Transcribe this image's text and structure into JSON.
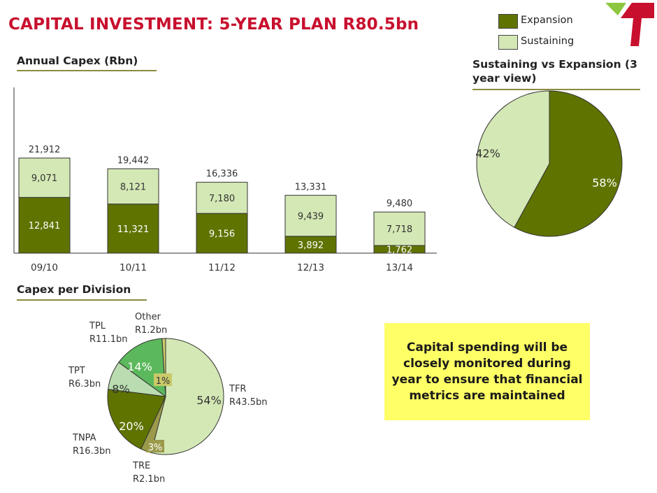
{
  "title": "CAPITAL INVESTMENT: 5-YEAR PLAN R80.5bn",
  "legend": {
    "items": [
      {
        "label": "Expansion",
        "color": "#5f7300"
      },
      {
        "label": "Sustaining",
        "color": "#d4e8b5"
      }
    ]
  },
  "logo": {
    "icon": "transnet-logo-icon",
    "colors": [
      "#c8102e",
      "#8dc63f"
    ]
  },
  "sections": {
    "annual_capex": "Annual Capex (Rbn)",
    "capex_per_division": "Capex per Division",
    "sustaining_vs_expansion": "Sustaining vs Expansion (3 year view)"
  },
  "callout": "Capital spending will be closely monitored during year to ensure that financial metrics are maintained",
  "chart_data": [
    {
      "type": "bar",
      "stacked": true,
      "title": "Annual Capex (Rbn)",
      "categories": [
        "09/10",
        "10/11",
        "11/12",
        "12/13",
        "13/14"
      ],
      "series": [
        {
          "name": "Expansion",
          "color": "#5f7300",
          "values": [
            12841,
            11321,
            9156,
            3892,
            1762
          ],
          "labels": [
            "12,841",
            "11,321",
            "9,156",
            "3,892",
            "1,762"
          ]
        },
        {
          "name": "Sustaining",
          "color": "#d4e8b5",
          "values": [
            9071,
            8121,
            7180,
            9439,
            7718
          ],
          "labels": [
            "9,071",
            "8,121",
            "7,180",
            "9,439",
            "7,718"
          ]
        }
      ],
      "totals": [
        "21,912",
        "19,442",
        "16,336",
        "13,331",
        "9,480"
      ],
      "ylim": [
        0,
        22000
      ]
    },
    {
      "type": "pie",
      "title": "Sustaining vs Expansion (3 year view)",
      "slices": [
        {
          "name": "Expansion",
          "value": 58,
          "label": "58%",
          "color": "#5f7300"
        },
        {
          "name": "Sustaining",
          "value": 42,
          "label": "42%",
          "color": "#d4e8b5"
        }
      ]
    },
    {
      "type": "pie",
      "title": "Capex per Division",
      "slices": [
        {
          "name": "TFR",
          "amount": "R43.5bn",
          "value": 54,
          "label": "54%",
          "color": "#d4e8b5"
        },
        {
          "name": "TRE",
          "amount": "R2.1bn",
          "value": 3,
          "label": "3%",
          "color": "#9a9a4a"
        },
        {
          "name": "TNPA",
          "amount": "R16.3bn",
          "value": 20,
          "label": "20%",
          "color": "#5f7300"
        },
        {
          "name": "TPT",
          "amount": "R6.3bn",
          "value": 8,
          "label": "8%",
          "color": "#b9dcb0"
        },
        {
          "name": "TPL",
          "amount": "R11.1bn",
          "value": 14,
          "label": "14%",
          "color": "#5cb85c"
        },
        {
          "name": "Other",
          "amount": "R1.2bn",
          "value": 1,
          "label": "1%",
          "color": "#c9c96a"
        }
      ]
    }
  ]
}
